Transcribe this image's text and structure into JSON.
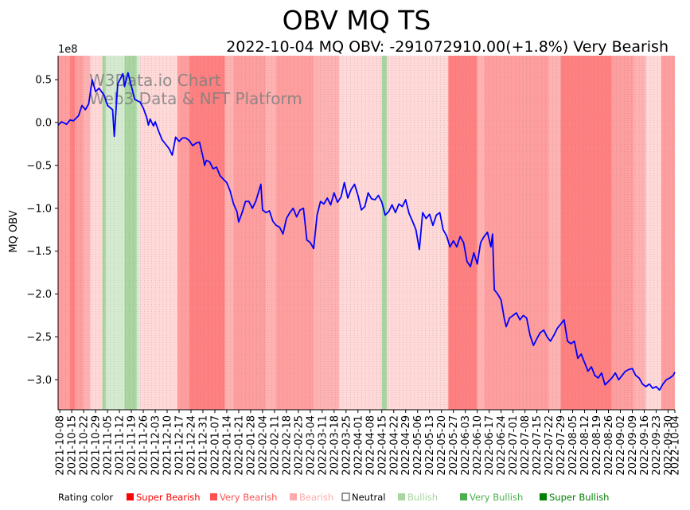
{
  "chart_data": {
    "type": "line",
    "title": "OBV MQ TS",
    "subtitle": "2022-10-04 MQ OBV: -291072910.00(+1.8%) Very Bearish",
    "ylabel": "MQ OBV",
    "xlabel": "",
    "y_scale_label": "1e8",
    "ylim": [
      -3.35,
      0.78
    ],
    "y_ticks": [
      0.5,
      0.0,
      -0.5,
      -1.0,
      -1.5,
      -2.0,
      -2.5,
      -3.0
    ],
    "y_tick_labels": [
      "0.5",
      "0.0",
      "−0.5",
      "−1.0",
      "−1.5",
      "−2.0",
      "−2.5",
      "−3.0"
    ],
    "x_start": "2021-10-07",
    "x_end": "2022-10-04",
    "x_ticks": [
      "2021-10-08",
      "2021-10-15",
      "2021-10-22",
      "2021-10-29",
      "2021-11-05",
      "2021-11-12",
      "2021-11-19",
      "2021-11-26",
      "2021-12-03",
      "2021-12-10",
      "2021-12-17",
      "2021-12-24",
      "2021-12-31",
      "2022-01-07",
      "2022-01-14",
      "2022-01-21",
      "2022-01-28",
      "2022-02-04",
      "2022-02-11",
      "2022-02-18",
      "2022-02-25",
      "2022-03-04",
      "2022-03-11",
      "2022-03-18",
      "2022-03-25",
      "2022-04-01",
      "2022-04-08",
      "2022-04-15",
      "2022-04-22",
      "2022-04-29",
      "2022-05-06",
      "2022-05-13",
      "2022-05-20",
      "2022-05-27",
      "2022-06-03",
      "2022-06-10",
      "2022-06-17",
      "2022-06-24",
      "2022-07-01",
      "2022-07-08",
      "2022-07-15",
      "2022-07-22",
      "2022-07-29",
      "2022-08-05",
      "2022-08-12",
      "2022-08-19",
      "2022-08-26",
      "2022-09-02",
      "2022-09-09",
      "2022-09-16",
      "2022-09-23",
      "2022-09-30",
      "2022-10-04"
    ],
    "series": [
      {
        "name": "MQ OBV",
        "color": "#0000ff",
        "points": [
          [
            "2021-10-07",
            -0.03
          ],
          [
            "2021-10-09",
            0.01
          ],
          [
            "2021-10-12",
            -0.02
          ],
          [
            "2021-10-14",
            0.03
          ],
          [
            "2021-10-16",
            0.02
          ],
          [
            "2021-10-19",
            0.08
          ],
          [
            "2021-10-21",
            0.2
          ],
          [
            "2021-10-23",
            0.15
          ],
          [
            "2021-10-25",
            0.22
          ],
          [
            "2021-10-27",
            0.5
          ],
          [
            "2021-10-29",
            0.36
          ],
          [
            "2021-10-31",
            0.4
          ],
          [
            "2021-11-03",
            0.32
          ],
          [
            "2021-11-05",
            0.2
          ],
          [
            "2021-11-08",
            0.15
          ],
          [
            "2021-11-09",
            -0.16
          ],
          [
            "2021-11-11",
            0.45
          ],
          [
            "2021-11-14",
            0.57
          ],
          [
            "2021-11-15",
            0.42
          ],
          [
            "2021-11-17",
            0.58
          ],
          [
            "2021-11-21",
            0.27
          ],
          [
            "2021-11-24",
            0.24
          ],
          [
            "2021-11-26",
            0.17
          ],
          [
            "2021-11-28",
            0.06
          ],
          [
            "2021-11-29",
            -0.03
          ],
          [
            "2021-11-30",
            0.04
          ],
          [
            "2021-12-02",
            -0.04
          ],
          [
            "2021-12-03",
            0.01
          ],
          [
            "2021-12-05",
            -0.1
          ],
          [
            "2021-12-07",
            -0.2
          ],
          [
            "2021-12-09",
            -0.25
          ],
          [
            "2021-12-11",
            -0.3
          ],
          [
            "2021-12-13",
            -0.38
          ],
          [
            "2021-12-15",
            -0.17
          ],
          [
            "2021-12-17",
            -0.22
          ],
          [
            "2021-12-19",
            -0.18
          ],
          [
            "2021-12-21",
            -0.18
          ],
          [
            "2021-12-23",
            -0.21
          ],
          [
            "2021-12-25",
            -0.27
          ],
          [
            "2021-12-27",
            -0.24
          ],
          [
            "2021-12-29",
            -0.23
          ],
          [
            "2021-12-31",
            -0.4
          ],
          [
            "2022-01-01",
            -0.5
          ],
          [
            "2022-01-02",
            -0.44
          ],
          [
            "2022-01-04",
            -0.46
          ],
          [
            "2022-01-06",
            -0.54
          ],
          [
            "2022-01-08",
            -0.52
          ],
          [
            "2022-01-10",
            -0.62
          ],
          [
            "2022-01-12",
            -0.66
          ],
          [
            "2022-01-14",
            -0.7
          ],
          [
            "2022-01-16",
            -0.8
          ],
          [
            "2022-01-18",
            -0.95
          ],
          [
            "2022-01-20",
            -1.04
          ],
          [
            "2022-01-21",
            -1.16
          ],
          [
            "2022-01-23",
            -1.05
          ],
          [
            "2022-01-25",
            -0.92
          ],
          [
            "2022-01-27",
            -0.92
          ],
          [
            "2022-01-29",
            -1.0
          ],
          [
            "2022-01-31",
            -0.92
          ],
          [
            "2022-02-03",
            -0.72
          ],
          [
            "2022-02-04",
            -1.02
          ],
          [
            "2022-02-06",
            -1.05
          ],
          [
            "2022-02-08",
            -1.03
          ],
          [
            "2022-02-10",
            -1.15
          ],
          [
            "2022-02-12",
            -1.2
          ],
          [
            "2022-02-14",
            -1.22
          ],
          [
            "2022-02-16",
            -1.3
          ],
          [
            "2022-02-18",
            -1.12
          ],
          [
            "2022-02-20",
            -1.05
          ],
          [
            "2022-02-22",
            -1.0
          ],
          [
            "2022-02-24",
            -1.1
          ],
          [
            "2022-02-26",
            -1.02
          ],
          [
            "2022-02-28",
            -1.0
          ],
          [
            "2022-03-02",
            -1.37
          ],
          [
            "2022-03-04",
            -1.4
          ],
          [
            "2022-03-06",
            -1.47
          ],
          [
            "2022-03-08",
            -1.08
          ],
          [
            "2022-03-10",
            -0.92
          ],
          [
            "2022-03-12",
            -0.95
          ],
          [
            "2022-03-14",
            -0.88
          ],
          [
            "2022-03-16",
            -0.96
          ],
          [
            "2022-03-18",
            -0.82
          ],
          [
            "2022-03-20",
            -0.93
          ],
          [
            "2022-03-22",
            -0.87
          ],
          [
            "2022-03-24",
            -0.7
          ],
          [
            "2022-03-26",
            -0.88
          ],
          [
            "2022-03-28",
            -0.78
          ],
          [
            "2022-03-30",
            -0.72
          ],
          [
            "2022-04-01",
            -0.85
          ],
          [
            "2022-04-03",
            -1.02
          ],
          [
            "2022-04-05",
            -0.98
          ],
          [
            "2022-04-07",
            -0.82
          ],
          [
            "2022-04-09",
            -0.89
          ],
          [
            "2022-04-11",
            -0.9
          ],
          [
            "2022-04-13",
            -0.85
          ],
          [
            "2022-04-15",
            -0.93
          ],
          [
            "2022-04-17",
            -1.08
          ],
          [
            "2022-04-19",
            -1.04
          ],
          [
            "2022-04-21",
            -0.96
          ],
          [
            "2022-04-23",
            -1.05
          ],
          [
            "2022-04-25",
            -0.95
          ],
          [
            "2022-04-27",
            -0.98
          ],
          [
            "2022-04-29",
            -0.9
          ],
          [
            "2022-05-01",
            -1.06
          ],
          [
            "2022-05-03",
            -1.15
          ],
          [
            "2022-05-05",
            -1.25
          ],
          [
            "2022-05-07",
            -1.48
          ],
          [
            "2022-05-09",
            -1.05
          ],
          [
            "2022-05-11",
            -1.12
          ],
          [
            "2022-05-13",
            -1.07
          ],
          [
            "2022-05-15",
            -1.2
          ],
          [
            "2022-05-17",
            -1.08
          ],
          [
            "2022-05-19",
            -1.05
          ],
          [
            "2022-05-21",
            -1.25
          ],
          [
            "2022-05-23",
            -1.32
          ],
          [
            "2022-05-25",
            -1.45
          ],
          [
            "2022-05-27",
            -1.38
          ],
          [
            "2022-05-29",
            -1.45
          ],
          [
            "2022-05-31",
            -1.33
          ],
          [
            "2022-06-02",
            -1.4
          ],
          [
            "2022-06-04",
            -1.62
          ],
          [
            "2022-06-06",
            -1.68
          ],
          [
            "2022-06-08",
            -1.52
          ],
          [
            "2022-06-10",
            -1.65
          ],
          [
            "2022-06-12",
            -1.4
          ],
          [
            "2022-06-14",
            -1.33
          ],
          [
            "2022-06-16",
            -1.28
          ],
          [
            "2022-06-18",
            -1.45
          ],
          [
            "2022-06-19",
            -1.3
          ],
          [
            "2022-06-20",
            -1.95
          ],
          [
            "2022-06-22",
            -2.0
          ],
          [
            "2022-06-24",
            -2.07
          ],
          [
            "2022-06-26",
            -2.3
          ],
          [
            "2022-06-27",
            -2.38
          ],
          [
            "2022-06-29",
            -2.28
          ],
          [
            "2022-07-01",
            -2.25
          ],
          [
            "2022-07-03",
            -2.22
          ],
          [
            "2022-07-05",
            -2.3
          ],
          [
            "2022-07-07",
            -2.25
          ],
          [
            "2022-07-09",
            -2.28
          ],
          [
            "2022-07-11",
            -2.48
          ],
          [
            "2022-07-13",
            -2.6
          ],
          [
            "2022-07-15",
            -2.52
          ],
          [
            "2022-07-17",
            -2.45
          ],
          [
            "2022-07-19",
            -2.42
          ],
          [
            "2022-07-21",
            -2.5
          ],
          [
            "2022-07-23",
            -2.55
          ],
          [
            "2022-07-25",
            -2.48
          ],
          [
            "2022-07-27",
            -2.4
          ],
          [
            "2022-07-29",
            -2.35
          ],
          [
            "2022-07-31",
            -2.3
          ],
          [
            "2022-08-02",
            -2.55
          ],
          [
            "2022-08-04",
            -2.58
          ],
          [
            "2022-08-06",
            -2.55
          ],
          [
            "2022-08-08",
            -2.75
          ],
          [
            "2022-08-10",
            -2.7
          ],
          [
            "2022-08-12",
            -2.8
          ],
          [
            "2022-08-14",
            -2.9
          ],
          [
            "2022-08-16",
            -2.85
          ],
          [
            "2022-08-18",
            -2.95
          ],
          [
            "2022-08-20",
            -2.98
          ],
          [
            "2022-08-22",
            -2.92
          ],
          [
            "2022-08-24",
            -3.06
          ],
          [
            "2022-08-26",
            -3.02
          ],
          [
            "2022-08-28",
            -2.98
          ],
          [
            "2022-08-30",
            -2.92
          ],
          [
            "2022-09-01",
            -3.0
          ],
          [
            "2022-09-03",
            -2.95
          ],
          [
            "2022-09-05",
            -2.9
          ],
          [
            "2022-09-07",
            -2.88
          ],
          [
            "2022-09-09",
            -2.87
          ],
          [
            "2022-09-11",
            -2.95
          ],
          [
            "2022-09-13",
            -2.98
          ],
          [
            "2022-09-15",
            -3.05
          ],
          [
            "2022-09-17",
            -3.08
          ],
          [
            "2022-09-19",
            -3.05
          ],
          [
            "2022-09-21",
            -3.1
          ],
          [
            "2022-09-23",
            -3.08
          ],
          [
            "2022-09-25",
            -3.12
          ],
          [
            "2022-09-27",
            -3.05
          ],
          [
            "2022-09-29",
            -3.0
          ],
          [
            "2022-10-01",
            -2.98
          ],
          [
            "2022-10-03",
            -2.95
          ],
          [
            "2022-10-04",
            -2.91
          ]
        ]
      }
    ],
    "rating_bands": [
      {
        "from": "2021-10-07",
        "to": "2021-10-14",
        "rating": "Very Bearish"
      },
      {
        "from": "2021-10-14",
        "to": "2021-10-17",
        "rating": "Super Bearish"
      },
      {
        "from": "2021-10-17",
        "to": "2021-10-22",
        "rating": "Very Bearish"
      },
      {
        "from": "2021-10-22",
        "to": "2021-10-26",
        "rating": "Bearish"
      },
      {
        "from": "2021-10-26",
        "to": "2021-11-02",
        "rating": "Neutral"
      },
      {
        "from": "2021-11-02",
        "to": "2021-11-04",
        "rating": "Very Bullish"
      },
      {
        "from": "2021-11-04",
        "to": "2021-11-15",
        "rating": "Bullish"
      },
      {
        "from": "2021-11-15",
        "to": "2021-11-22",
        "rating": "Very Bullish"
      },
      {
        "from": "2021-11-22",
        "to": "2021-11-24",
        "rating": "Bullish"
      },
      {
        "from": "2021-11-24",
        "to": "2021-12-16",
        "rating": "Neutral"
      },
      {
        "from": "2021-12-16",
        "to": "2021-12-23",
        "rating": "Very Bearish"
      },
      {
        "from": "2021-12-23",
        "to": "2022-01-13",
        "rating": "Super Bearish"
      },
      {
        "from": "2022-01-13",
        "to": "2022-01-18",
        "rating": "Bearish"
      },
      {
        "from": "2022-01-18",
        "to": "2022-02-06",
        "rating": "Very Bearish"
      },
      {
        "from": "2022-02-06",
        "to": "2022-02-12",
        "rating": "Bearish"
      },
      {
        "from": "2022-02-12",
        "to": "2022-03-06",
        "rating": "Very Bearish"
      },
      {
        "from": "2022-03-06",
        "to": "2022-03-21",
        "rating": "Bearish"
      },
      {
        "from": "2022-03-21",
        "to": "2022-04-15",
        "rating": "Neutral"
      },
      {
        "from": "2022-04-15",
        "to": "2022-04-18",
        "rating": "Very Bullish"
      },
      {
        "from": "2022-04-18",
        "to": "2022-05-24",
        "rating": "Neutral"
      },
      {
        "from": "2022-05-24",
        "to": "2022-06-10",
        "rating": "Super Bearish"
      },
      {
        "from": "2022-06-10",
        "to": "2022-06-14",
        "rating": "Bearish"
      },
      {
        "from": "2022-06-14",
        "to": "2022-07-22",
        "rating": "Very Bearish"
      },
      {
        "from": "2022-07-22",
        "to": "2022-07-29",
        "rating": "Bearish"
      },
      {
        "from": "2022-07-29",
        "to": "2022-08-28",
        "rating": "Super Bearish"
      },
      {
        "from": "2022-08-28",
        "to": "2022-09-10",
        "rating": "Very Bearish"
      },
      {
        "from": "2022-09-10",
        "to": "2022-09-17",
        "rating": "Bearish"
      },
      {
        "from": "2022-09-17",
        "to": "2022-09-26",
        "rating": "Neutral"
      },
      {
        "from": "2022-09-26",
        "to": "2022-10-04",
        "rating": "Very Bearish"
      }
    ],
    "rating_colors": {
      "Super Bearish": "#ff8080",
      "Very Bearish": "#ff9e9e",
      "Bearish": "#ffb2b2",
      "Neutral": "#ffd8d8",
      "Bullish": "#d5ead0",
      "Very Bullish": "#a8d5a0",
      "Super Bullish": "#7fbf77"
    },
    "legend_title": "Rating color",
    "legend": [
      {
        "label": "Super Bearish",
        "color": "#ff0000",
        "text_color": "#ff0000"
      },
      {
        "label": "Very Bearish",
        "color": "#ff5050",
        "text_color": "#ff5050"
      },
      {
        "label": "Bearish",
        "color": "#ffaaaa",
        "text_color": "#ffaaaa"
      },
      {
        "label": "Neutral",
        "color": "#ffffff",
        "text_color": "#000000"
      },
      {
        "label": "Bullish",
        "color": "#a8d5a0",
        "text_color": "#a8d5a0"
      },
      {
        "label": "Very Bullish",
        "color": "#4caf50",
        "text_color": "#4caf50"
      },
      {
        "label": "Super Bullish",
        "color": "#008000",
        "text_color": "#008000"
      }
    ],
    "watermark": [
      "W3Data.io Chart",
      "Web3 Data & NFT Platform"
    ],
    "grid": false
  }
}
